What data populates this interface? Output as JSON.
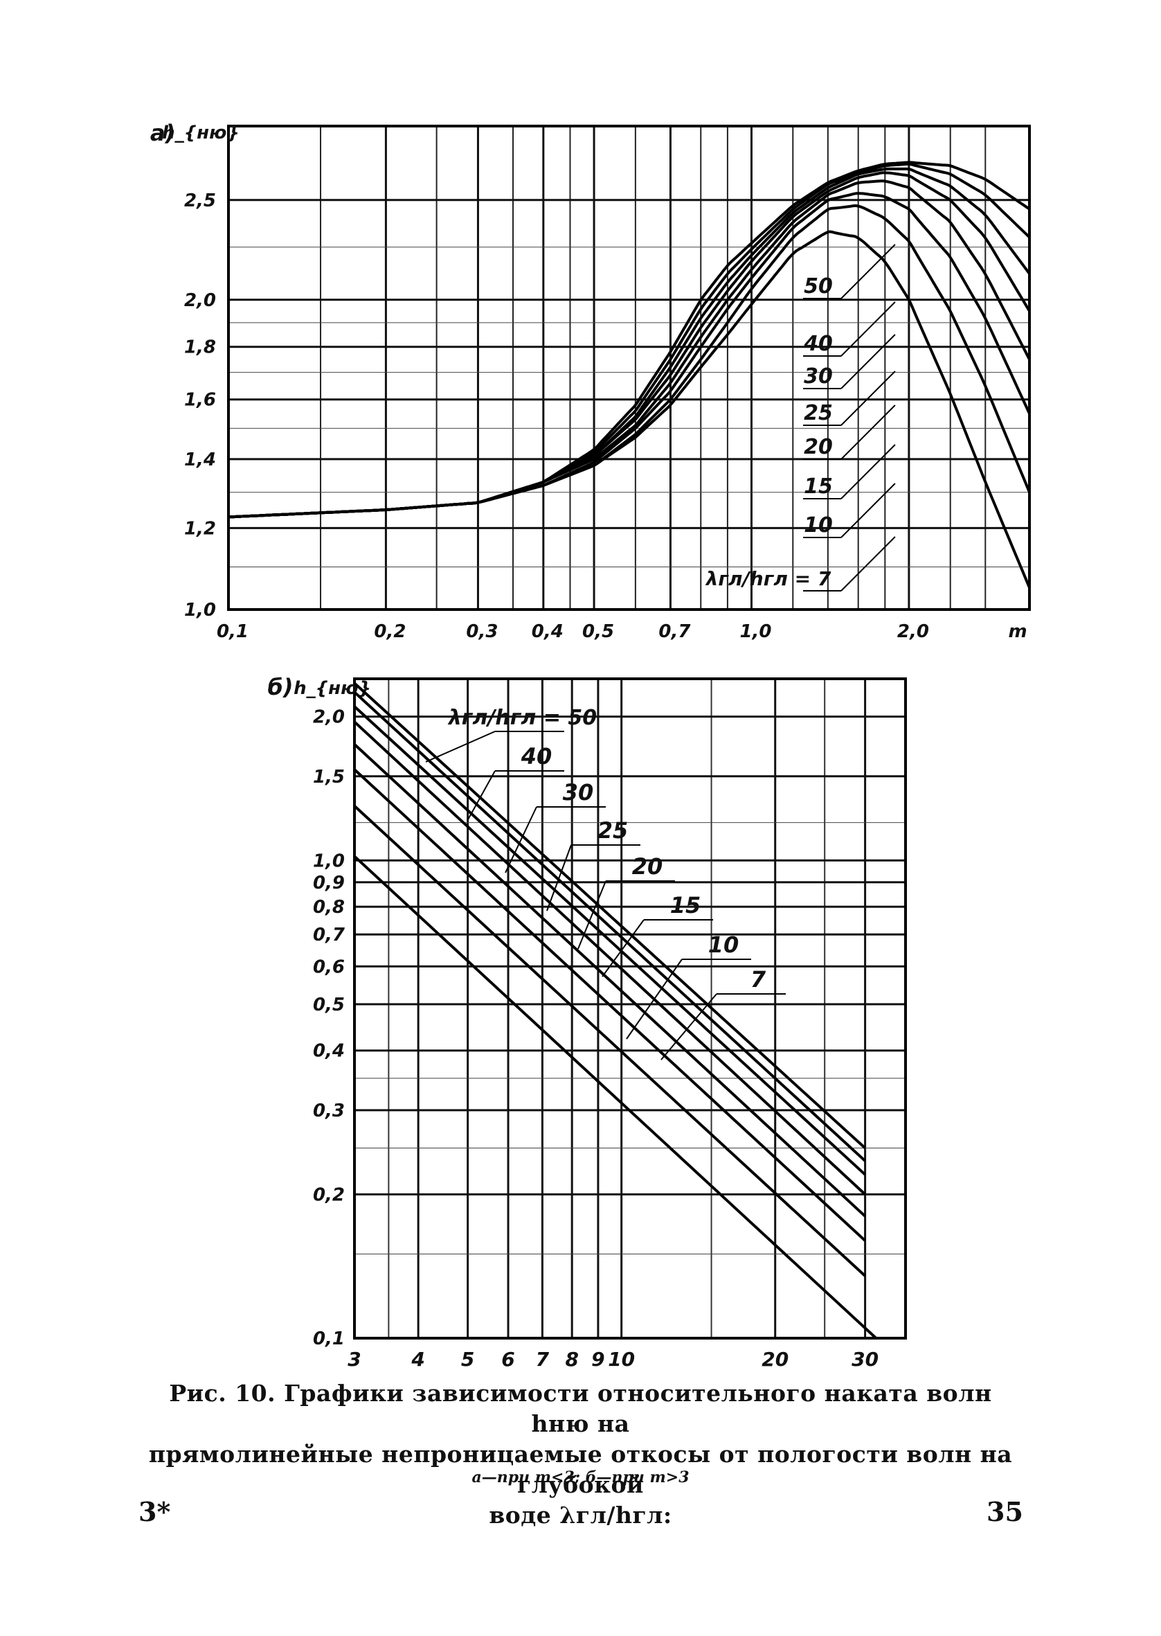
{
  "chart_data": [
    {
      "type": "line",
      "panel_label": "а)",
      "ylabel": "h_{ню}",
      "xlabel": "m",
      "x_scale": "log",
      "y_scale": "log",
      "xlim": [
        0.1,
        3.4
      ],
      "ylim": [
        1.0,
        2.95
      ],
      "x_ticks": [
        0.1,
        0.2,
        0.3,
        0.4,
        0.5,
        0.7,
        1.0,
        2.0
      ],
      "x_tick_labels": [
        "0,1",
        "0,2",
        "0,3",
        "0,4",
        "0,5",
        "0,7",
        "1,0",
        "2,0"
      ],
      "y_ticks": [
        1.0,
        1.2,
        1.4,
        1.6,
        1.8,
        2.0,
        2.5
      ],
      "y_tick_labels": [
        "1,0",
        "1,2",
        "1,4",
        "1,6",
        "1,8",
        "2,0",
        "2,5"
      ],
      "grid": true,
      "legend_title": "λгл/hгл = 7",
      "series": [
        {
          "name": "7",
          "x": [
            0.1,
            0.2,
            0.3,
            0.4,
            0.5,
            0.6,
            0.7,
            0.8,
            0.9,
            1.0,
            1.2,
            1.4,
            1.6,
            1.8,
            2.0,
            2.4,
            2.8,
            3.4
          ],
          "y": [
            1.23,
            1.25,
            1.27,
            1.32,
            1.38,
            1.47,
            1.58,
            1.72,
            1.85,
            1.98,
            2.22,
            2.33,
            2.3,
            2.18,
            2.0,
            1.62,
            1.33,
            1.05
          ]
        },
        {
          "name": "10",
          "x": [
            0.1,
            0.2,
            0.3,
            0.4,
            0.5,
            0.6,
            0.7,
            0.8,
            0.9,
            1.0,
            1.2,
            1.4,
            1.6,
            1.8,
            2.0,
            2.4,
            2.8,
            3.4
          ],
          "y": [
            1.23,
            1.25,
            1.27,
            1.32,
            1.38,
            1.48,
            1.6,
            1.75,
            1.9,
            2.05,
            2.3,
            2.45,
            2.47,
            2.4,
            2.28,
            1.95,
            1.65,
            1.3
          ]
        },
        {
          "name": "15",
          "x": [
            0.1,
            0.2,
            0.3,
            0.4,
            0.5,
            0.6,
            0.7,
            0.8,
            0.9,
            1.0,
            1.2,
            1.4,
            1.6,
            1.8,
            2.0,
            2.4,
            2.8,
            3.4
          ],
          "y": [
            1.23,
            1.25,
            1.27,
            1.32,
            1.39,
            1.5,
            1.63,
            1.8,
            1.96,
            2.1,
            2.35,
            2.5,
            2.54,
            2.52,
            2.45,
            2.2,
            1.92,
            1.55
          ]
        },
        {
          "name": "20",
          "x": [
            0.1,
            0.2,
            0.3,
            0.4,
            0.5,
            0.6,
            0.7,
            0.8,
            0.9,
            1.0,
            1.2,
            1.4,
            1.6,
            1.8,
            2.0,
            2.4,
            2.8,
            3.4
          ],
          "y": [
            1.23,
            1.25,
            1.27,
            1.33,
            1.4,
            1.51,
            1.66,
            1.84,
            2.0,
            2.14,
            2.38,
            2.53,
            2.6,
            2.61,
            2.57,
            2.38,
            2.12,
            1.75
          ]
        },
        {
          "name": "25",
          "x": [
            0.1,
            0.2,
            0.3,
            0.4,
            0.5,
            0.6,
            0.7,
            0.8,
            0.9,
            1.0,
            1.2,
            1.4,
            1.6,
            1.8,
            2.0,
            2.4,
            2.8,
            3.4
          ],
          "y": [
            1.23,
            1.25,
            1.27,
            1.33,
            1.41,
            1.53,
            1.69,
            1.88,
            2.04,
            2.18,
            2.41,
            2.55,
            2.63,
            2.66,
            2.64,
            2.5,
            2.3,
            1.95
          ]
        },
        {
          "name": "30",
          "x": [
            0.1,
            0.2,
            0.3,
            0.4,
            0.5,
            0.6,
            0.7,
            0.8,
            0.9,
            1.0,
            1.2,
            1.4,
            1.6,
            1.8,
            2.0,
            2.4,
            2.8,
            3.4
          ],
          "y": [
            1.23,
            1.25,
            1.27,
            1.33,
            1.41,
            1.54,
            1.72,
            1.92,
            2.08,
            2.21,
            2.43,
            2.57,
            2.65,
            2.68,
            2.68,
            2.58,
            2.42,
            2.12
          ]
        },
        {
          "name": "40",
          "x": [
            0.1,
            0.2,
            0.3,
            0.4,
            0.5,
            0.6,
            0.7,
            0.8,
            0.9,
            1.0,
            1.2,
            1.4,
            1.6,
            1.8,
            2.0,
            2.4,
            2.8,
            3.4
          ],
          "y": [
            1.23,
            1.25,
            1.27,
            1.33,
            1.42,
            1.56,
            1.75,
            1.96,
            2.12,
            2.24,
            2.45,
            2.59,
            2.66,
            2.7,
            2.71,
            2.65,
            2.53,
            2.3
          ]
        },
        {
          "name": "50",
          "x": [
            0.1,
            0.2,
            0.3,
            0.4,
            0.5,
            0.6,
            0.7,
            0.8,
            0.9,
            1.0,
            1.2,
            1.4,
            1.6,
            1.8,
            2.0,
            2.4,
            2.8,
            3.4
          ],
          "y": [
            1.23,
            1.25,
            1.27,
            1.33,
            1.43,
            1.58,
            1.78,
            2.0,
            2.16,
            2.27,
            2.47,
            2.6,
            2.67,
            2.71,
            2.72,
            2.7,
            2.62,
            2.45
          ]
        }
      ]
    },
    {
      "type": "line",
      "panel_label": "б)",
      "ylabel": "h_{ню}",
      "x_scale": "log",
      "y_scale": "log",
      "xlim": [
        3,
        36
      ],
      "ylim": [
        0.1,
        2.4
      ],
      "x_ticks": [
        3,
        4,
        5,
        6,
        7,
        8,
        9,
        10,
        20,
        30
      ],
      "x_tick_labels": [
        "3",
        "4",
        "5",
        "6",
        "7",
        "8",
        "9",
        "10",
        "20",
        "30"
      ],
      "y_ticks": [
        0.1,
        0.2,
        0.3,
        0.4,
        0.5,
        0.6,
        0.7,
        0.8,
        0.9,
        1.0,
        1.5,
        2.0
      ],
      "y_tick_labels": [
        "0,1",
        "0,2",
        "0,3",
        "0,4",
        "0,5",
        "0,6",
        "0,7",
        "0,8",
        "0,9",
        "1,0",
        "1,5",
        "2,0"
      ],
      "grid": true,
      "legend_title": "λгл/hгл = 50",
      "series": [
        {
          "name": "50",
          "x": [
            3,
            30
          ],
          "y": [
            2.35,
            0.25
          ]
        },
        {
          "name": "40",
          "x": [
            3,
            30
          ],
          "y": [
            2.25,
            0.235
          ]
        },
        {
          "name": "30",
          "x": [
            3,
            30
          ],
          "y": [
            2.1,
            0.22
          ]
        },
        {
          "name": "25",
          "x": [
            3,
            30
          ],
          "y": [
            1.95,
            0.2
          ]
        },
        {
          "name": "20",
          "x": [
            3,
            30
          ],
          "y": [
            1.75,
            0.18
          ]
        },
        {
          "name": "15",
          "x": [
            3,
            30
          ],
          "y": [
            1.55,
            0.16
          ]
        },
        {
          "name": "10",
          "x": [
            3,
            30
          ],
          "y": [
            1.3,
            0.135
          ]
        },
        {
          "name": "7",
          "x": [
            3,
            30
          ],
          "y": [
            1.02,
            0.105
          ]
        }
      ]
    }
  ],
  "caption": {
    "line1": "Рис. 10. Графики зависимости относительного наката волн hню на",
    "line2": "прямолинейные непроницаемые откосы от пологости волн на глубокой",
    "line3": "воде λгл/hгл:",
    "sub": "а—при m<3; б—при m>3"
  },
  "page": {
    "left_mark": "3*",
    "number": "35"
  }
}
